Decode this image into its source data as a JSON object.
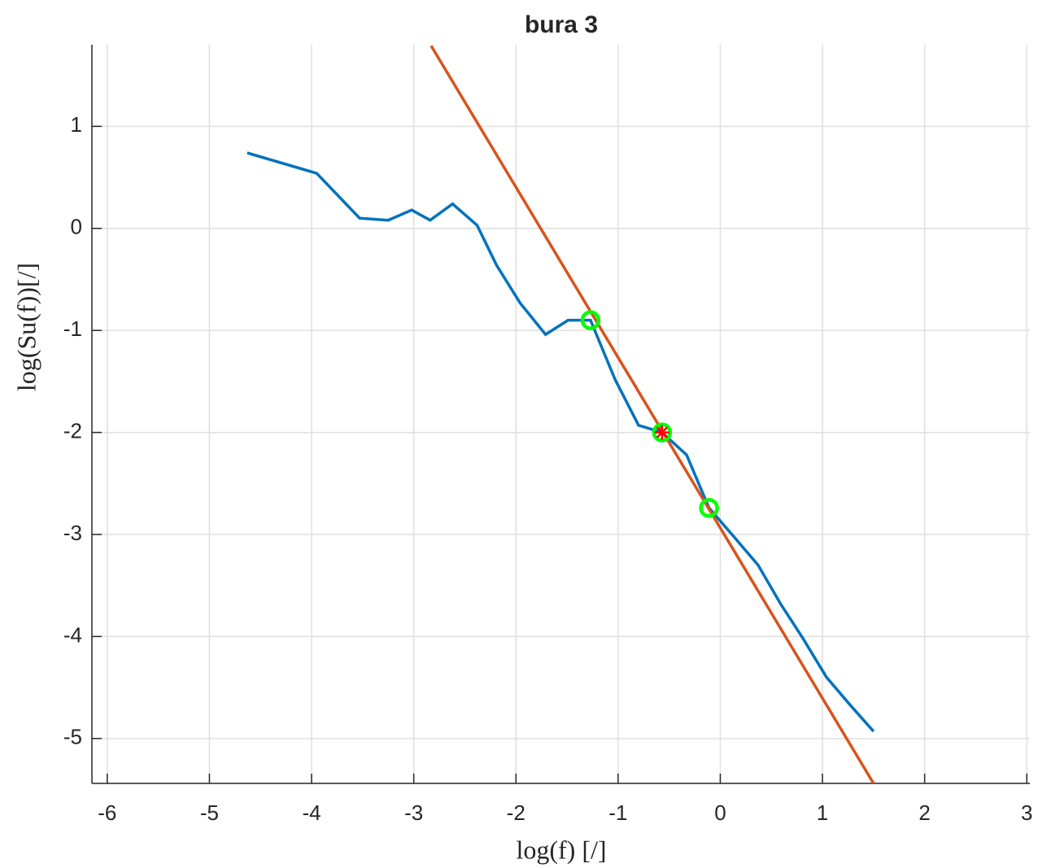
{
  "chart_data": {
    "type": "line",
    "title": "bura 3",
    "xlabel": "log(f)  [/]",
    "ylabel": "log(Su(f))[/]",
    "xlim": [
      -6.15,
      3.03
    ],
    "ylim": [
      -5.44,
      1.8
    ],
    "xticks": [
      -6,
      -5,
      -4,
      -3,
      -2,
      -1,
      0,
      1,
      2,
      3
    ],
    "yticks": [
      -5,
      -4,
      -3,
      -2,
      -1,
      0,
      1
    ],
    "grid": true,
    "series": [
      {
        "color": "#0072bd",
        "marker": "none",
        "x": [
          -4.63,
          -3.95,
          -3.53,
          -3.25,
          -3.02,
          -2.84,
          -2.62,
          -2.38,
          -2.19,
          -1.96,
          -1.71,
          -1.49,
          -1.27,
          -1.03,
          -0.8,
          -0.57,
          -0.33,
          -0.11,
          0.14,
          0.37,
          0.59,
          0.81,
          1.04,
          1.27,
          1.5
        ],
        "values": [
          0.74,
          0.54,
          0.1,
          0.08,
          0.18,
          0.08,
          0.24,
          0.03,
          -0.36,
          -0.73,
          -1.04,
          -0.9,
          -0.9,
          -1.48,
          -1.93,
          -2.0,
          -2.22,
          -2.74,
          -3.03,
          -3.3,
          -3.68,
          -4.02,
          -4.4,
          -4.67,
          -4.93
        ]
      },
      {
        "color": "#d95319",
        "marker": "none",
        "x": [
          -2.83,
          1.5
        ],
        "values": [
          1.79,
          -5.44
        ]
      },
      {
        "color": "#00ff00",
        "marker": "circle",
        "x": [
          -1.27,
          -0.57,
          -0.11
        ],
        "values": [
          -0.9,
          -2.0,
          -2.74
        ]
      },
      {
        "color": "#ff0000",
        "marker": "star",
        "x": [
          -0.57
        ],
        "values": [
          -2.0
        ]
      }
    ]
  }
}
